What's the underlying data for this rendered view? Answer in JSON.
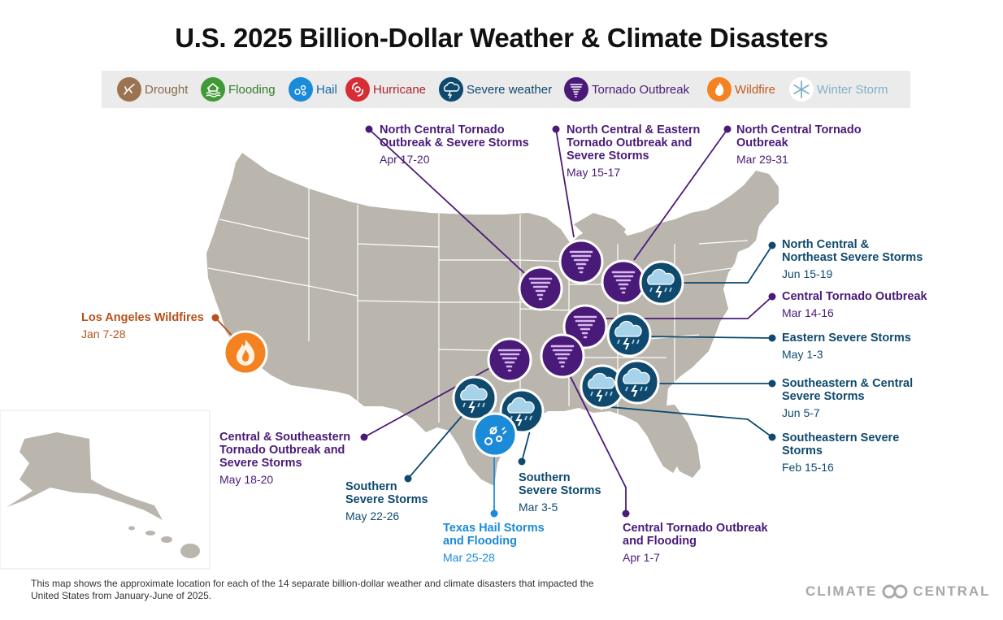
{
  "title": "U.S. 2025 Billion-Dollar Weather & Climate Disasters",
  "legend": {
    "items": [
      {
        "label": "Drought",
        "icon": "drought-icon",
        "color": "#9a7452",
        "text_color": "#8a6a4b"
      },
      {
        "label": "Flooding",
        "icon": "flooding-icon",
        "color": "#3f9b36",
        "text_color": "#2f7d28"
      },
      {
        "label": "Hail",
        "icon": "hail-icon",
        "color": "#1b8ad8",
        "text_color": "#1468ab"
      },
      {
        "label": "Hurricane",
        "icon": "hurricane-icon",
        "color": "#d72d34",
        "text_color": "#b3222a"
      },
      {
        "label": "Severe weather",
        "icon": "severe-weather-icon",
        "color": "#0f4a6e",
        "text_color": "#0f4a6e"
      },
      {
        "label": "Tornado Outbreak",
        "icon": "tornado-icon",
        "color": "#4a1a78",
        "text_color": "#4a1a78"
      },
      {
        "label": "Wildfire",
        "icon": "wildfire-icon",
        "color": "#f58220",
        "text_color": "#c4591a"
      },
      {
        "label": "Winter Storm",
        "icon": "winter-storm-icon",
        "color": "#ffffff",
        "text_color": "#7fb1c9"
      }
    ]
  },
  "events": [
    {
      "title": "Los Angeles Wildfires",
      "dates": "Jan 7-28",
      "type": "wildfire",
      "color": "#b5521a"
    },
    {
      "title": "North Central Tornado\nOutbreak & Severe Storms",
      "dates": "Apr 17-20",
      "type": "tornado",
      "color": "#4a1a78"
    },
    {
      "title": "North Central & Eastern\nTornado Outbreak and\nSevere Storms",
      "dates": "May 15-17",
      "type": "tornado",
      "color": "#4a1a78"
    },
    {
      "title": "North Central Tornado\nOutbreak",
      "dates": "Mar 29-31",
      "type": "tornado",
      "color": "#4a1a78"
    },
    {
      "title": "North Central &\nNortheast Severe Storms",
      "dates": "Jun 15-19",
      "type": "severe",
      "color": "#0f4a6e"
    },
    {
      "title": "Central Tornado Outbreak",
      "dates": "Mar 14-16",
      "type": "tornado",
      "color": "#4a1a78"
    },
    {
      "title": "Eastern Severe Storms",
      "dates": "May 1-3",
      "type": "severe",
      "color": "#0f4a6e"
    },
    {
      "title": "Southeastern & Central\nSevere Storms",
      "dates": "Jun 5-7",
      "type": "severe",
      "color": "#0f4a6e"
    },
    {
      "title": "Southeastern Severe\nStorms",
      "dates": "Feb 15-16",
      "type": "severe",
      "color": "#0f4a6e"
    },
    {
      "title": "Central & Southeastern\nTornado Outbreak and\nSevere Storms",
      "dates": "May 18-20",
      "type": "tornado",
      "color": "#4a1a78"
    },
    {
      "title": "Southern\nSevere Storms",
      "dates": "May 22-26",
      "type": "severe",
      "color": "#0f4a6e"
    },
    {
      "title": "Southern\nSevere Storms",
      "dates": "Mar 3-5",
      "type": "severe",
      "color": "#0f4a6e"
    },
    {
      "title": "Texas Hail Storms\nand Flooding",
      "dates": "Mar 25-28",
      "type": "hail",
      "color": "#1b8ad8"
    },
    {
      "title": "Central Tornado Outbreak\nand Flooding",
      "dates": "Apr 1-7",
      "type": "tornado",
      "color": "#4a1a78"
    }
  ],
  "footnote": "This map shows the approximate location for each of the 14 separate billion-dollar weather and climate disasters that impacted the United States from January-June of 2025.",
  "brand": {
    "left": "CLIMATE",
    "right": "CENTRAL"
  },
  "colors": {
    "land": "#bab5ad",
    "state_lines": "#ffffff",
    "tornado": "#4a1a78",
    "severe": "#0f4a6e",
    "hail": "#1b8ad8",
    "wildfire": "#f58220"
  }
}
